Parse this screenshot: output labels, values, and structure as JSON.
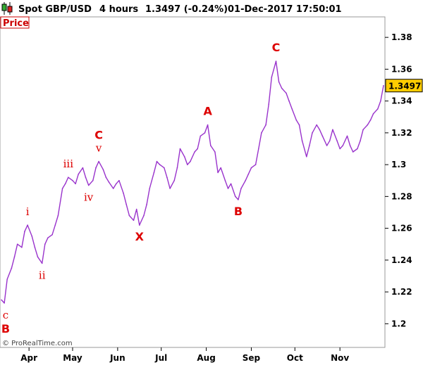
{
  "header": {
    "instrument": "Spot GBP/USD",
    "timeframe": "4 hours",
    "quote": "1.3497 (-0.24%)",
    "datetime": "01-Dec-2017 17:50:01"
  },
  "price_label": "Price",
  "credit": "© ProRealTime.com",
  "last_value": "1.3497",
  "colors": {
    "line": "#9933cc",
    "wave_label": "#dd0000",
    "last_box": "#ffcc00",
    "price_box_border": "#cc0000"
  },
  "chart_data": {
    "type": "line",
    "title": "",
    "xlabel": "",
    "ylabel": "",
    "ylim": [
      1.186,
      1.392
    ],
    "yticks": [
      1.2,
      1.22,
      1.24,
      1.26,
      1.28,
      1.3,
      1.32,
      1.34,
      1.36,
      1.38
    ],
    "ytick_labels": [
      "1.2",
      "1.22",
      "1.24",
      "1.26",
      "1.28",
      "1.3",
      "1.32",
      "1.34",
      "1.36",
      "1.38"
    ],
    "grid": false,
    "legend": "none",
    "xlim": [
      "2017-03-13",
      "2017-12-01"
    ],
    "x_ticks": [
      {
        "label": "Apr",
        "x": "2017-04-01"
      },
      {
        "label": "May",
        "x": "2017-05-01"
      },
      {
        "label": "Jun",
        "x": "2017-06-01"
      },
      {
        "label": "Jul",
        "x": "2017-07-01"
      },
      {
        "label": "Aug",
        "x": "2017-08-01"
      },
      {
        "label": "Sep",
        "x": "2017-09-01"
      },
      {
        "label": "Oct",
        "x": "2017-10-01"
      },
      {
        "label": "Nov",
        "x": "2017-11-01"
      }
    ],
    "series": [
      {
        "x": [
          "2017-03-13",
          "2017-03-15",
          "2017-03-17",
          "2017-03-20",
          "2017-03-22",
          "2017-03-24",
          "2017-03-27",
          "2017-03-29",
          "2017-03-31",
          "2017-04-03",
          "2017-04-05",
          "2017-04-07",
          "2017-04-10",
          "2017-04-12",
          "2017-04-14",
          "2017-04-17",
          "2017-04-19",
          "2017-04-21",
          "2017-04-24",
          "2017-04-26",
          "2017-04-28",
          "2017-05-01",
          "2017-05-03",
          "2017-05-05",
          "2017-05-08",
          "2017-05-10",
          "2017-05-12",
          "2017-05-15",
          "2017-05-17",
          "2017-05-19",
          "2017-05-22",
          "2017-05-24",
          "2017-05-26",
          "2017-05-29",
          "2017-05-31",
          "2017-06-02",
          "2017-06-05",
          "2017-06-07",
          "2017-06-09",
          "2017-06-12",
          "2017-06-14",
          "2017-06-16",
          "2017-06-19",
          "2017-06-21",
          "2017-06-23",
          "2017-06-26",
          "2017-06-28",
          "2017-06-30",
          "2017-07-03",
          "2017-07-05",
          "2017-07-07",
          "2017-07-10",
          "2017-07-12",
          "2017-07-14",
          "2017-07-17",
          "2017-07-19",
          "2017-07-21",
          "2017-07-24",
          "2017-07-26",
          "2017-07-28",
          "2017-07-31",
          "2017-08-02",
          "2017-08-04",
          "2017-08-07",
          "2017-08-09",
          "2017-08-11",
          "2017-08-14",
          "2017-08-16",
          "2017-08-18",
          "2017-08-21",
          "2017-08-23",
          "2017-08-25",
          "2017-08-28",
          "2017-08-30",
          "2017-09-01",
          "2017-09-04",
          "2017-09-06",
          "2017-09-08",
          "2017-09-11",
          "2017-09-13",
          "2017-09-15",
          "2017-09-18",
          "2017-09-20",
          "2017-09-22",
          "2017-09-25",
          "2017-09-27",
          "2017-09-29",
          "2017-10-02",
          "2017-10-04",
          "2017-10-06",
          "2017-10-09",
          "2017-10-11",
          "2017-10-13",
          "2017-10-16",
          "2017-10-18",
          "2017-10-20",
          "2017-10-23",
          "2017-10-25",
          "2017-10-27",
          "2017-10-30",
          "2017-11-01",
          "2017-11-03",
          "2017-11-06",
          "2017-11-08",
          "2017-11-10",
          "2017-11-13",
          "2017-11-15",
          "2017-11-17",
          "2017-11-20",
          "2017-11-22",
          "2017-11-24",
          "2017-11-27",
          "2017-11-29",
          "2017-12-01"
        ],
        "values": [
          1.215,
          1.213,
          1.228,
          1.235,
          1.242,
          1.25,
          1.248,
          1.258,
          1.262,
          1.255,
          1.248,
          1.242,
          1.238,
          1.25,
          1.254,
          1.256,
          1.262,
          1.268,
          1.285,
          1.288,
          1.292,
          1.29,
          1.288,
          1.294,
          1.298,
          1.292,
          1.287,
          1.29,
          1.298,
          1.302,
          1.297,
          1.292,
          1.289,
          1.285,
          1.288,
          1.29,
          1.282,
          1.275,
          1.268,
          1.265,
          1.272,
          1.262,
          1.268,
          1.275,
          1.285,
          1.295,
          1.302,
          1.3,
          1.298,
          1.292,
          1.285,
          1.29,
          1.298,
          1.31,
          1.305,
          1.3,
          1.302,
          1.308,
          1.31,
          1.318,
          1.32,
          1.325,
          1.312,
          1.308,
          1.295,
          1.298,
          1.29,
          1.285,
          1.288,
          1.28,
          1.278,
          1.285,
          1.29,
          1.294,
          1.298,
          1.3,
          1.31,
          1.32,
          1.325,
          1.338,
          1.355,
          1.365,
          1.352,
          1.348,
          1.345,
          1.34,
          1.335,
          1.328,
          1.325,
          1.315,
          1.305,
          1.312,
          1.32,
          1.325,
          1.322,
          1.318,
          1.312,
          1.315,
          1.322,
          1.315,
          1.31,
          1.312,
          1.318,
          1.312,
          1.308,
          1.31,
          1.315,
          1.322,
          1.325,
          1.328,
          1.332,
          1.335,
          1.34,
          1.3497
        ]
      }
    ],
    "annotations": [
      {
        "text": "c",
        "x": "2017-03-13",
        "y": 1.213,
        "style": "small",
        "pos": "below"
      },
      {
        "text": "B",
        "x": "2017-03-13",
        "y": 1.213,
        "style": "big",
        "pos": "below2"
      },
      {
        "text": "i",
        "x": "2017-03-31",
        "y": 1.262,
        "style": "small",
        "pos": "above"
      },
      {
        "text": "ii",
        "x": "2017-04-10",
        "y": 1.238,
        "style": "small",
        "pos": "below"
      },
      {
        "text": "iii",
        "x": "2017-04-28",
        "y": 1.292,
        "style": "small",
        "pos": "above"
      },
      {
        "text": "iv",
        "x": "2017-05-12",
        "y": 1.287,
        "style": "small",
        "pos": "below"
      },
      {
        "text": "v",
        "x": "2017-05-19",
        "y": 1.302,
        "style": "small",
        "pos": "above"
      },
      {
        "text": "C",
        "x": "2017-05-19",
        "y": 1.302,
        "style": "big",
        "pos": "above2"
      },
      {
        "text": "X",
        "x": "2017-06-16",
        "y": 1.262,
        "style": "big",
        "pos": "below"
      },
      {
        "text": "A",
        "x": "2017-08-02",
        "y": 1.325,
        "style": "big",
        "pos": "above"
      },
      {
        "text": "B",
        "x": "2017-08-23",
        "y": 1.278,
        "style": "big",
        "pos": "below"
      },
      {
        "text": "C",
        "x": "2017-09-18",
        "y": 1.365,
        "style": "big",
        "pos": "above"
      }
    ]
  }
}
